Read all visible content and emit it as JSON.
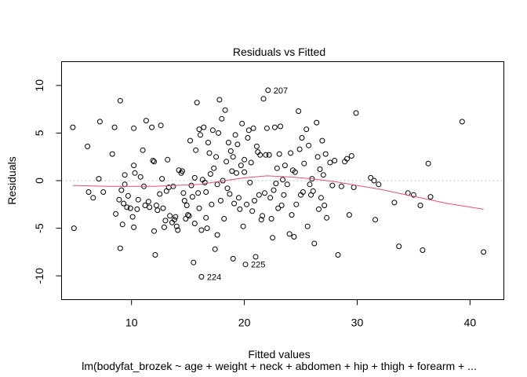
{
  "chart_data": {
    "type": "scatter",
    "title": "Residuals vs Fitted",
    "xlabel": "Fitted values",
    "ylabel": "Residuals",
    "subtitle": "lm(bodyfat_brozek ~ age + weight + neck + abdomen + hip + thigh + forearm + ...",
    "xlim": [
      3.8,
      43.0
    ],
    "ylim": [
      -12.5,
      12.5
    ],
    "x_ticks": [
      10,
      20,
      30,
      40
    ],
    "x_tick_labels": [
      "10",
      "20",
      "30",
      "40"
    ],
    "y_ticks": [
      -10,
      -5,
      0,
      5,
      10
    ],
    "y_tick_labels": [
      "-10",
      "-5",
      "0",
      "5",
      "10"
    ],
    "reference_line": 0,
    "colors": {
      "points": "#000000",
      "smooth": "#DF536B",
      "reference": "#BEBEBE"
    },
    "labeled_points": [
      {
        "label": "207",
        "x": 22.1,
        "y": 9.5
      },
      {
        "label": "224",
        "x": 16.2,
        "y": -10.1
      },
      {
        "label": "225",
        "x": 20.1,
        "y": -8.8
      }
    ],
    "smooth": {
      "x": [
        4.8,
        8,
        12,
        16,
        20,
        22,
        24,
        26,
        28,
        30,
        32,
        34,
        36,
        38,
        41.2
      ],
      "y": [
        -0.5,
        -0.6,
        -0.6,
        -0.4,
        0.3,
        0.5,
        0.4,
        0.2,
        -0.1,
        -0.5,
        -0.9,
        -1.4,
        -1.9,
        -2.4,
        -3.0
      ]
    },
    "points": [
      [
        4.8,
        5.6
      ],
      [
        4.9,
        -5.0
      ],
      [
        6.1,
        3.6
      ],
      [
        6.2,
        -1.2
      ],
      [
        6.6,
        -1.8
      ],
      [
        7.1,
        0.2
      ],
      [
        7.2,
        6.2
      ],
      [
        7.5,
        -1.2
      ],
      [
        8.3,
        2.8
      ],
      [
        8.5,
        5.6
      ],
      [
        8.6,
        -3.5
      ],
      [
        8.9,
        -2.0
      ],
      [
        9.0,
        8.4
      ],
      [
        9.0,
        -7.1
      ],
      [
        9.1,
        -1.0
      ],
      [
        9.2,
        -4.6
      ],
      [
        9.3,
        -2.4
      ],
      [
        9.4,
        0.6
      ],
      [
        9.4,
        -0.4
      ],
      [
        9.6,
        -2.8
      ],
      [
        9.7,
        -1.6
      ],
      [
        9.9,
        -2.9
      ],
      [
        10.1,
        -3.8
      ],
      [
        10.2,
        1.6
      ],
      [
        10.2,
        5.5
      ],
      [
        10.2,
        -4.9
      ],
      [
        10.3,
        0.8
      ],
      [
        10.5,
        -3.0
      ],
      [
        10.6,
        -2.0
      ],
      [
        10.8,
        0.4
      ],
      [
        11.0,
        3.2
      ],
      [
        11.1,
        -0.6
      ],
      [
        11.2,
        -2.6
      ],
      [
        11.3,
        6.3
      ],
      [
        11.5,
        -2.2
      ],
      [
        11.6,
        -2.8
      ],
      [
        11.8,
        5.6
      ],
      [
        11.9,
        2.1
      ],
      [
        12.0,
        2.0
      ],
      [
        12.0,
        -5.3
      ],
      [
        12.1,
        -7.8
      ],
      [
        12.2,
        -2.6
      ],
      [
        12.3,
        -3.1
      ],
      [
        12.5,
        -1.4
      ],
      [
        12.6,
        5.8
      ],
      [
        12.7,
        0.2
      ],
      [
        12.8,
        -2.9
      ],
      [
        12.9,
        -4.9
      ],
      [
        13.0,
        -4.2
      ],
      [
        13.1,
        -1.1
      ],
      [
        13.2,
        2.2
      ],
      [
        13.3,
        -0.7
      ],
      [
        13.4,
        -3.7
      ],
      [
        13.6,
        -4.4
      ],
      [
        13.7,
        -0.6
      ],
      [
        13.8,
        -4.1
      ],
      [
        13.9,
        -3.8
      ],
      [
        14.0,
        -4.8
      ],
      [
        14.1,
        -5.2
      ],
      [
        14.2,
        1.1
      ],
      [
        14.4,
        0.8
      ],
      [
        14.5,
        1.0
      ],
      [
        14.6,
        -1.3
      ],
      [
        14.7,
        -2.1
      ],
      [
        14.8,
        -4.0
      ],
      [
        14.9,
        -2.6
      ],
      [
        15.0,
        -3.6
      ],
      [
        15.1,
        -3.7
      ],
      [
        15.2,
        4.2
      ],
      [
        15.3,
        -0.5
      ],
      [
        15.4,
        -1.7
      ],
      [
        15.5,
        -8.6
      ],
      [
        15.6,
        -4.5
      ],
      [
        15.6,
        0.3
      ],
      [
        15.7,
        3.2
      ],
      [
        15.8,
        8.2
      ],
      [
        15.9,
        -1.3
      ],
      [
        16.0,
        5.4
      ],
      [
        16.0,
        -2.9
      ],
      [
        16.1,
        4.8
      ],
      [
        16.2,
        -10.1
      ],
      [
        16.2,
        -5.2
      ],
      [
        16.3,
        0.1
      ],
      [
        16.4,
        5.6
      ],
      [
        16.5,
        -0.2
      ],
      [
        16.6,
        -1.2
      ],
      [
        16.6,
        -3.9
      ],
      [
        16.7,
        -5.0
      ],
      [
        16.8,
        4.0
      ],
      [
        16.9,
        2.9
      ],
      [
        17.0,
        0.7
      ],
      [
        17.1,
        -2.5
      ],
      [
        17.2,
        5.3
      ],
      [
        17.3,
        1.3
      ],
      [
        17.4,
        -7.2
      ],
      [
        17.5,
        2.5
      ],
      [
        17.6,
        -0.4
      ],
      [
        17.6,
        -5.7
      ],
      [
        17.7,
        5.0
      ],
      [
        17.8,
        8.5
      ],
      [
        17.9,
        -2.1
      ],
      [
        18.0,
        6.5
      ],
      [
        18.1,
        0.0
      ],
      [
        18.2,
        -4.0
      ],
      [
        18.3,
        7.4
      ],
      [
        18.4,
        2.0
      ],
      [
        18.5,
        -0.8
      ],
      [
        18.6,
        4.0
      ],
      [
        18.7,
        -1.4
      ],
      [
        18.8,
        3.1
      ],
      [
        18.9,
        1.0
      ],
      [
        19.0,
        -8.2
      ],
      [
        19.0,
        2.5
      ],
      [
        19.1,
        -2.4
      ],
      [
        19.2,
        4.8
      ],
      [
        19.3,
        0.8
      ],
      [
        19.4,
        3.8
      ],
      [
        19.5,
        -1.8
      ],
      [
        19.6,
        -3.0
      ],
      [
        19.7,
        1.6
      ],
      [
        19.8,
        6.0
      ],
      [
        19.9,
        -4.8
      ],
      [
        20.0,
        2.2
      ],
      [
        20.0,
        0.9
      ],
      [
        20.1,
        -8.8
      ],
      [
        20.2,
        -2.5
      ],
      [
        20.3,
        4.5
      ],
      [
        20.4,
        5.3
      ],
      [
        20.5,
        -0.2
      ],
      [
        20.6,
        1.9
      ],
      [
        20.7,
        -3.2
      ],
      [
        20.8,
        5.5
      ],
      [
        20.9,
        -2.1
      ],
      [
        21.0,
        -8.0
      ],
      [
        21.1,
        3.6
      ],
      [
        21.2,
        3.0
      ],
      [
        21.3,
        -1.5
      ],
      [
        21.4,
        2.7
      ],
      [
        21.5,
        -4.1
      ],
      [
        21.6,
        -3.7
      ],
      [
        21.7,
        8.6
      ],
      [
        21.8,
        -1.3
      ],
      [
        21.9,
        2.7
      ],
      [
        22.0,
        5.5
      ],
      [
        22.1,
        9.5
      ],
      [
        22.2,
        2.7
      ],
      [
        22.3,
        -1.8
      ],
      [
        22.4,
        -4.0
      ],
      [
        22.5,
        -6.0
      ],
      [
        22.6,
        -1.0
      ],
      [
        22.7,
        5.6
      ],
      [
        22.8,
        -0.3
      ],
      [
        22.9,
        1.3
      ],
      [
        23.0,
        -2.9
      ],
      [
        23.1,
        2.8
      ],
      [
        23.2,
        5.7
      ],
      [
        23.3,
        -2.6
      ],
      [
        23.4,
        0.1
      ],
      [
        23.5,
        -1.5
      ],
      [
        23.6,
        1.6
      ],
      [
        23.8,
        -0.4
      ],
      [
        24.0,
        -5.6
      ],
      [
        24.1,
        2.9
      ],
      [
        24.2,
        -3.6
      ],
      [
        24.3,
        1.1
      ],
      [
        24.4,
        -5.9
      ],
      [
        24.5,
        0.9
      ],
      [
        24.6,
        -2.5
      ],
      [
        24.8,
        7.3
      ],
      [
        24.9,
        3.3
      ],
      [
        25.0,
        -1.5
      ],
      [
        25.1,
        4.5
      ],
      [
        25.2,
        -1.2
      ],
      [
        25.3,
        1.8
      ],
      [
        25.5,
        5.4
      ],
      [
        25.6,
        -4.8
      ],
      [
        25.7,
        3.7
      ],
      [
        25.8,
        -0.4
      ],
      [
        25.9,
        -1.5
      ],
      [
        26.0,
        0.2
      ],
      [
        26.1,
        -1.1
      ],
      [
        26.2,
        -6.6
      ],
      [
        26.4,
        6.1
      ],
      [
        26.5,
        2.5
      ],
      [
        26.6,
        -3.0
      ],
      [
        26.7,
        1.2
      ],
      [
        26.8,
        -1.8
      ],
      [
        26.9,
        4.2
      ],
      [
        27.0,
        0.6
      ],
      [
        27.1,
        -2.6
      ],
      [
        27.2,
        2.8
      ],
      [
        27.3,
        -3.9
      ],
      [
        27.6,
        1.9
      ],
      [
        27.8,
        -0.5
      ],
      [
        28.0,
        2.1
      ],
      [
        28.3,
        -7.8
      ],
      [
        28.6,
        -0.6
      ],
      [
        28.9,
        2.0
      ],
      [
        29.1,
        2.3
      ],
      [
        29.3,
        -3.6
      ],
      [
        29.5,
        2.6
      ],
      [
        29.7,
        -0.7
      ],
      [
        29.9,
        7.1
      ],
      [
        31.2,
        0.3
      ],
      [
        31.5,
        0.0
      ],
      [
        31.6,
        -4.1
      ],
      [
        31.9,
        -0.4
      ],
      [
        33.3,
        -2.3
      ],
      [
        33.7,
        -6.9
      ],
      [
        34.5,
        -1.3
      ],
      [
        35.0,
        -1.5
      ],
      [
        35.6,
        -2.6
      ],
      [
        35.8,
        -7.3
      ],
      [
        36.3,
        1.8
      ],
      [
        36.5,
        -1.7
      ],
      [
        39.3,
        6.2
      ],
      [
        41.2,
        -7.5
      ]
    ]
  }
}
